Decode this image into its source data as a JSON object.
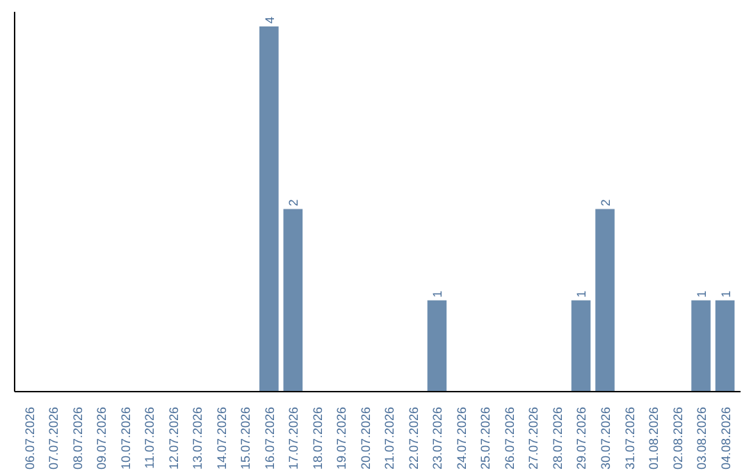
{
  "chart_data": {
    "type": "bar",
    "categories": [
      "06.07.2026",
      "07.07.2026",
      "08.07.2026",
      "09.07.2026",
      "10.07.2026",
      "11.07.2026",
      "12.07.2026",
      "13.07.2026",
      "14.07.2026",
      "15.07.2026",
      "16.07.2026",
      "17.07.2026",
      "18.07.2026",
      "19.07.2026",
      "20.07.2026",
      "21.07.2026",
      "22.07.2026",
      "23.07.2026",
      "24.07.2026",
      "25.07.2026",
      "26.07.2026",
      "27.07.2026",
      "28.07.2026",
      "29.07.2026",
      "30.07.2026",
      "31.07.2026",
      "01.08.2026",
      "02.08.2026",
      "03.08.2026",
      "04.08.2026"
    ],
    "values": [
      0,
      0,
      0,
      0,
      0,
      0,
      0,
      0,
      0,
      0,
      4,
      2,
      0,
      0,
      0,
      0,
      0,
      1,
      0,
      0,
      0,
      0,
      0,
      1,
      2,
      0,
      0,
      0,
      1,
      1
    ],
    "value_labels": [
      null,
      null,
      null,
      null,
      null,
      null,
      null,
      null,
      null,
      null,
      "4",
      "2",
      null,
      null,
      null,
      null,
      null,
      "1",
      null,
      null,
      null,
      null,
      null,
      "1",
      "2",
      null,
      null,
      null,
      "1",
      "1"
    ],
    "color": "#6b8cae"
  }
}
